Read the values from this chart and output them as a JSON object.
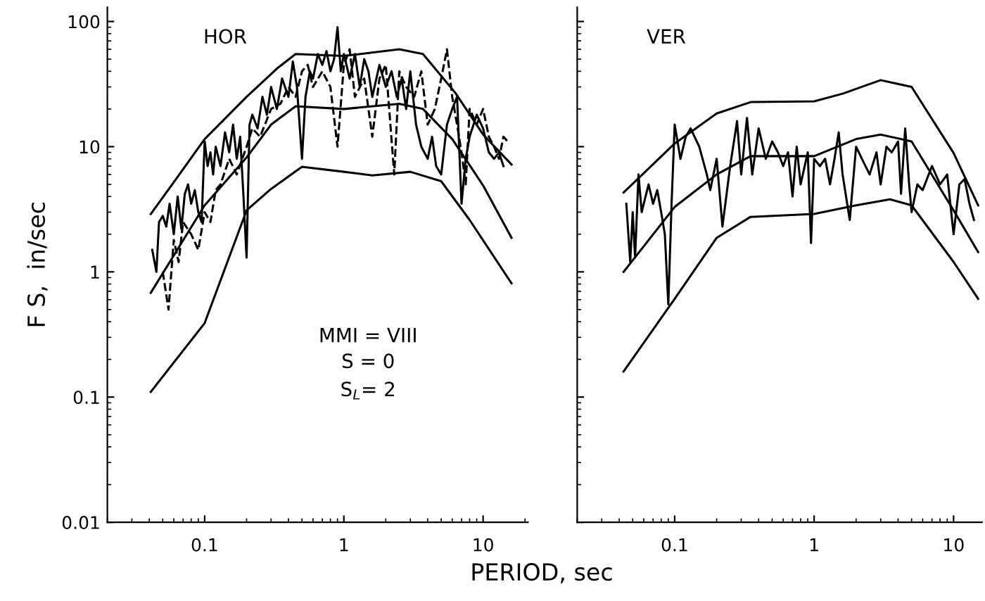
{
  "chart_data": [
    {
      "type": "line",
      "log": "xy",
      "xlabel": "PERIOD, sec",
      "ylabel": "F S,  in/sec",
      "xlim": [
        0.02,
        21
      ],
      "ylim": [
        0.01,
        130
      ],
      "xticks": [
        0.1,
        1,
        10
      ],
      "yticks": [
        0.01,
        0.1,
        1,
        10,
        100
      ],
      "grid": false,
      "marker": "none",
      "annotations": [
        "HOR",
        "MMI = VIII",
        "S = 0",
        "S$_{L}$= 2"
      ],
      "series": [
        {
          "color": "#000000",
          "line_style": "solid",
          "x": [
            0.041,
            0.06,
            0.1,
            0.2,
            0.33,
            0.45,
            1,
            2.5,
            3.7,
            6.3,
            10,
            16
          ],
          "values": [
            2.9,
            5.2,
            11.5,
            25,
            42,
            55,
            53,
            60,
            55,
            27,
            12.5,
            7.2
          ]
        },
        {
          "color": "#000000",
          "line_style": "solid",
          "x": [
            0.041,
            0.1,
            0.2,
            0.3,
            0.45,
            1,
            2.5,
            3.7,
            6,
            10,
            16
          ],
          "values": [
            0.68,
            3.4,
            8.2,
            15,
            21,
            20,
            22,
            20,
            11.5,
            4.9,
            1.87
          ]
        },
        {
          "color": "#000000",
          "line_style": "solid",
          "x": [
            0.041,
            0.1,
            0.2,
            0.3,
            0.5,
            1,
            1.6,
            3,
            5,
            8,
            16
          ],
          "values": [
            0.11,
            0.39,
            3.1,
            4.6,
            6.9,
            6.3,
            5.9,
            6.3,
            5.3,
            2.6,
            0.81
          ]
        },
        {
          "color": "#000000",
          "line_style": "solid",
          "x": [
            0.042,
            0.045,
            0.047,
            0.05,
            0.053,
            0.056,
            0.06,
            0.064,
            0.068,
            0.072,
            0.076,
            0.08,
            0.085,
            0.09,
            0.095,
            0.1,
            0.105,
            0.11,
            0.115,
            0.12,
            0.13,
            0.14,
            0.15,
            0.16,
            0.17,
            0.18,
            0.19,
            0.2,
            0.21,
            0.22,
            0.24,
            0.26,
            0.28,
            0.3,
            0.33,
            0.36,
            0.4,
            0.43,
            0.46,
            0.5,
            0.53,
            0.57,
            0.6,
            0.65,
            0.7,
            0.75,
            0.8,
            0.85,
            0.9,
            0.95,
            1.0,
            1.1,
            1.2,
            1.3,
            1.4,
            1.5,
            1.6,
            1.8,
            2.0,
            2.2,
            2.4,
            2.6,
            2.8,
            3.0,
            3.3,
            3.6,
            4.0,
            4.3,
            4.6,
            5.0,
            5.5,
            6.0,
            6.5,
            7.0,
            7.5,
            8.0,
            9.0,
            10,
            11,
            12,
            13,
            14
          ],
          "values": [
            1.5,
            1.0,
            2.5,
            2.8,
            2.3,
            3.5,
            2.0,
            4.0,
            2.2,
            4.2,
            5.0,
            3.5,
            4.5,
            3.0,
            2.5,
            11,
            7,
            9,
            6,
            10,
            7,
            13,
            9,
            15,
            8,
            12,
            4,
            1.3,
            15,
            18,
            14,
            25,
            18,
            30,
            20,
            35,
            25,
            48,
            30,
            8,
            25,
            40,
            35,
            55,
            45,
            58,
            40,
            50,
            90,
            40,
            55,
            35,
            55,
            30,
            50,
            40,
            25,
            45,
            30,
            40,
            25,
            35,
            20,
            40,
            15,
            10,
            8,
            12,
            7,
            6,
            15,
            20,
            25,
            3.5,
            8,
            12,
            18,
            14,
            9,
            8,
            9,
            7
          ]
        },
        {
          "color": "#000000",
          "line_style": "dashed",
          "x": [
            0.05,
            0.055,
            0.06,
            0.065,
            0.07,
            0.08,
            0.09,
            0.1,
            0.11,
            0.12,
            0.13,
            0.15,
            0.17,
            0.2,
            0.22,
            0.25,
            0.3,
            0.35,
            0.4,
            0.45,
            0.5,
            0.55,
            0.6,
            0.7,
            0.8,
            0.9,
            1.0,
            1.1,
            1.2,
            1.4,
            1.6,
            1.8,
            2.0,
            2.3,
            2.5,
            2.8,
            3.2,
            3.6,
            4,
            4.5,
            5,
            5.5,
            6,
            6.5,
            7,
            7.5,
            8,
            9,
            10,
            11,
            12,
            13,
            14,
            15
          ],
          "values": [
            1.0,
            0.5,
            1.8,
            1.2,
            2.5,
            2.0,
            1.5,
            3.0,
            2.5,
            4.5,
            5,
            8,
            6,
            10,
            14,
            12,
            20,
            22,
            30,
            25,
            40,
            45,
            30,
            40,
            30,
            10,
            45,
            60,
            25,
            35,
            12,
            35,
            45,
            6,
            40,
            30,
            25,
            40,
            15,
            20,
            35,
            60,
            25,
            15,
            9,
            5,
            20,
            15,
            20,
            12,
            10,
            8,
            12,
            11
          ]
        }
      ]
    },
    {
      "type": "line",
      "log": "xy",
      "xlim": [
        0.02,
        16
      ],
      "ylim": [
        0.01,
        130
      ],
      "xticks": [
        0.1,
        1,
        10
      ],
      "yticks": [
        0.01,
        0.1,
        1,
        10,
        100
      ],
      "tick_labels": "x",
      "grid": false,
      "marker": "none",
      "annotations": [
        "VER"
      ],
      "series": [
        {
          "color": "#000000",
          "line_style": "solid",
          "x": [
            0.043,
            0.1,
            0.2,
            0.35,
            1,
            1.6,
            3,
            5,
            10,
            15
          ],
          "values": [
            4.3,
            10.6,
            18.4,
            22.7,
            23,
            26.5,
            34,
            30,
            8.9,
            3.4
          ]
        },
        {
          "color": "#000000",
          "line_style": "solid",
          "x": [
            0.043,
            0.1,
            0.2,
            0.35,
            1,
            2,
            3,
            5,
            10,
            15
          ],
          "values": [
            1.0,
            3.3,
            6.0,
            8.4,
            8.4,
            11.5,
            12.5,
            11,
            3.1,
            1.44
          ]
        },
        {
          "color": "#000000",
          "line_style": "solid",
          "x": [
            0.043,
            0.1,
            0.2,
            0.35,
            1,
            2,
            3.5,
            5,
            10,
            15
          ],
          "values": [
            0.16,
            0.61,
            1.87,
            2.75,
            2.9,
            3.4,
            3.8,
            3.4,
            1.2,
            0.61
          ]
        },
        {
          "color": "#000000",
          "line_style": "solid",
          "x": [
            0.045,
            0.048,
            0.05,
            0.052,
            0.055,
            0.058,
            0.065,
            0.07,
            0.075,
            0.08,
            0.085,
            0.09,
            0.095,
            0.1,
            0.11,
            0.12,
            0.13,
            0.15,
            0.17,
            0.18,
            0.2,
            0.22,
            0.25,
            0.28,
            0.3,
            0.33,
            0.36,
            0.4,
            0.45,
            0.5,
            0.55,
            0.6,
            0.65,
            0.7,
            0.75,
            0.8,
            0.9,
            0.95,
            1.0,
            1.1,
            1.2,
            1.3,
            1.4,
            1.5,
            1.6,
            1.8,
            2.0,
            2.2,
            2.5,
            2.8,
            3.0,
            3.3,
            3.6,
            4.0,
            4.2,
            4.5,
            4.8,
            5.0,
            5.5,
            6,
            7,
            8,
            9,
            10,
            11,
            12,
            13,
            14
          ],
          "values": [
            3.5,
            1.2,
            3.0,
            1.3,
            6.0,
            3.0,
            5.0,
            3.5,
            4.5,
            3.0,
            2.0,
            0.55,
            3.5,
            15,
            8,
            12,
            14,
            10,
            6,
            4.5,
            8,
            2.3,
            7,
            16,
            6,
            17,
            6,
            14,
            8,
            11,
            9,
            7,
            9,
            4,
            10,
            5,
            9,
            1.7,
            8,
            7,
            8,
            5,
            8,
            13,
            6,
            2.6,
            10,
            8,
            6,
            9,
            5,
            10,
            9,
            11,
            4.2,
            14,
            5,
            3.0,
            5,
            4.5,
            7,
            5,
            6,
            2.0,
            5,
            5.5,
            3.5,
            2.6
          ]
        }
      ]
    }
  ]
}
